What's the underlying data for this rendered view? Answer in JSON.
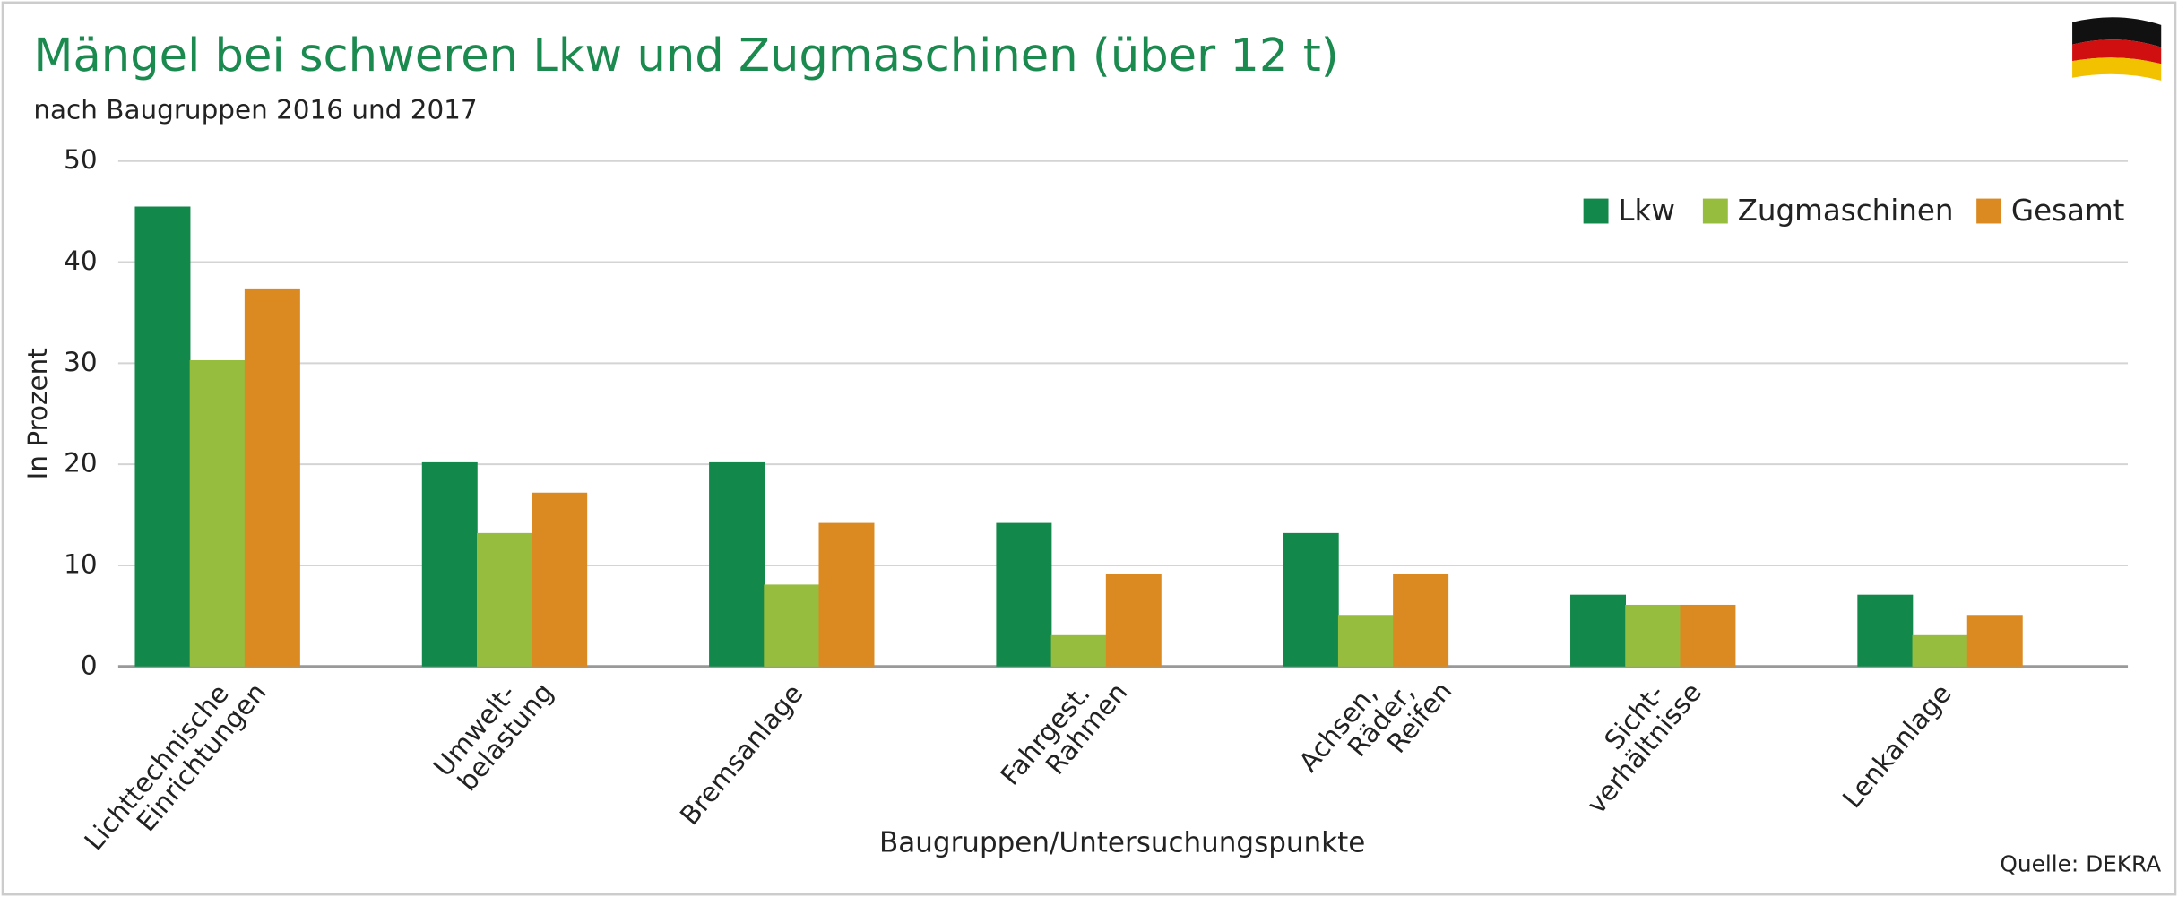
{
  "chart_data": {
    "type": "bar",
    "title": "Mängel bei schweren Lkw und Zugmaschinen (über 12 t)",
    "subtitle": "nach Baugruppen 2016 und 2017",
    "y_label": "In Prozent",
    "x_label": "Baugruppen/Untersuchungspunkte",
    "source": "Quelle: DEKRA",
    "categories": [
      [
        "Lichttechnische",
        "Einrichtungen"
      ],
      [
        "Umwelt-",
        "belastung"
      ],
      [
        "Bremsanlage"
      ],
      [
        "Fahrgest.",
        "Rahmen"
      ],
      [
        "Achsen,",
        "Räder,",
        "Reifen"
      ],
      [
        "Sicht-",
        "verhältnisse"
      ],
      [
        "Lenkanlage"
      ]
    ],
    "series": [
      {
        "name": "Lkw",
        "color": "#12884a",
        "values": [
          45.5,
          20.2,
          20.2,
          14.2,
          13.2,
          7.1,
          7.1
        ]
      },
      {
        "name": "Zugmaschinen",
        "color": "#97bd3f",
        "values": [
          30.3,
          13.2,
          8.1,
          3.1,
          5.1,
          6.1,
          3.1
        ]
      },
      {
        "name": "Gesamt",
        "color": "#db8a22",
        "values": [
          37.4,
          17.2,
          14.2,
          9.2,
          9.2,
          6.1,
          5.1
        ]
      }
    ],
    "ylim": [
      0,
      50
    ],
    "yticks": [
      0,
      10,
      20,
      30,
      40,
      50
    ],
    "grid": true,
    "legend": "top-right"
  }
}
